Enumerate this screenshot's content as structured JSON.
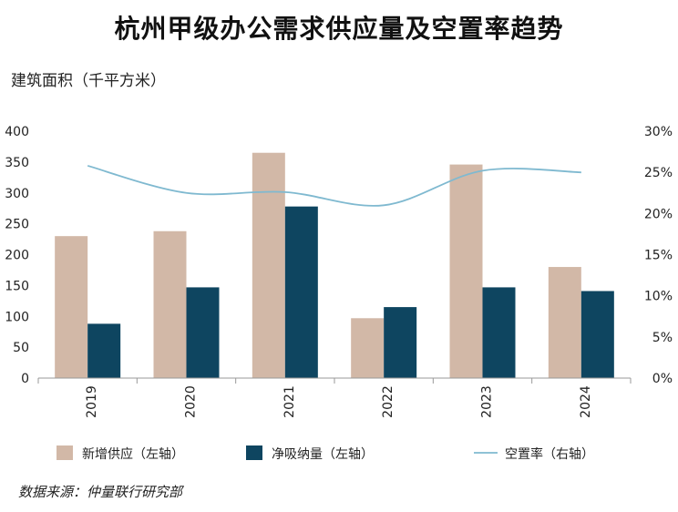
{
  "chart_data": {
    "type": "bar",
    "title": "杭州甲级办公需求供应量及空置率趋势",
    "ylabel": "建筑面积（千平方米）",
    "categories": [
      "2019",
      "2020",
      "2021",
      "2022",
      "2023",
      "2024"
    ],
    "series": [
      {
        "name": "新增供应（左轴）",
        "type": "bar",
        "axis": "left",
        "color": "#d2b8a7",
        "values": [
          230,
          238,
          365,
          97,
          346,
          180
        ]
      },
      {
        "name": "净吸纳量（左轴）",
        "type": "bar",
        "axis": "left",
        "color": "#0e4560",
        "values": [
          88,
          147,
          278,
          115,
          147,
          141
        ]
      },
      {
        "name": "空置率（右轴）",
        "type": "line",
        "axis": "right",
        "color": "#7fb9d0",
        "values": [
          25.8,
          22.5,
          22.6,
          21.0,
          25.2,
          25.0
        ]
      }
    ],
    "ylim_left": [
      0,
      400
    ],
    "yticks_left": [
      "0",
      "50",
      "100",
      "150",
      "200",
      "250",
      "300",
      "350",
      "400"
    ],
    "ylim_right": [
      0,
      30
    ],
    "yticks_right": [
      "0%",
      "5%",
      "10%",
      "15%",
      "20%",
      "25%",
      "30%"
    ],
    "legend_position": "bottom",
    "grid": false
  },
  "source": "数据来源：仲量联行研究部"
}
